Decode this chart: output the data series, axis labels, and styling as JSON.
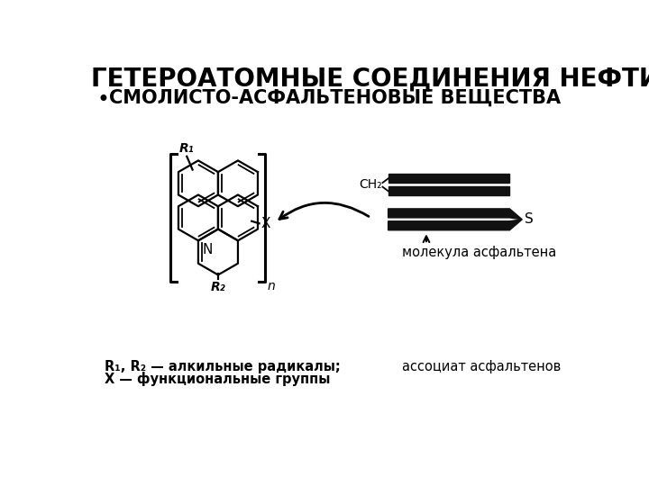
{
  "title": "ГЕТЕРОАТОМНЫЕ СОЕДИНЕНИЯ НЕФТИ:",
  "bullet": "СМОЛИСТО-АСФАЛЬТЕНОВЫЕ ВЕЩЕСТВА",
  "label_R1R2": "R₁, R₂ — алкильные радикалы;",
  "label_X": "X — функциональные группы",
  "label_molecule": "молекула асфальтена",
  "label_assoc": "ассоциат асфальтенов",
  "label_CH2": "CH₂",
  "label_S": "S",
  "label_X_struct": "X",
  "label_N": "N",
  "label_n": "n",
  "label_R1": "R₁",
  "label_R2": "R₂",
  "bg_color": "#ffffff",
  "line_color": "#000000",
  "title_fontsize": 20,
  "bullet_fontsize": 15,
  "body_fontsize": 10.5
}
